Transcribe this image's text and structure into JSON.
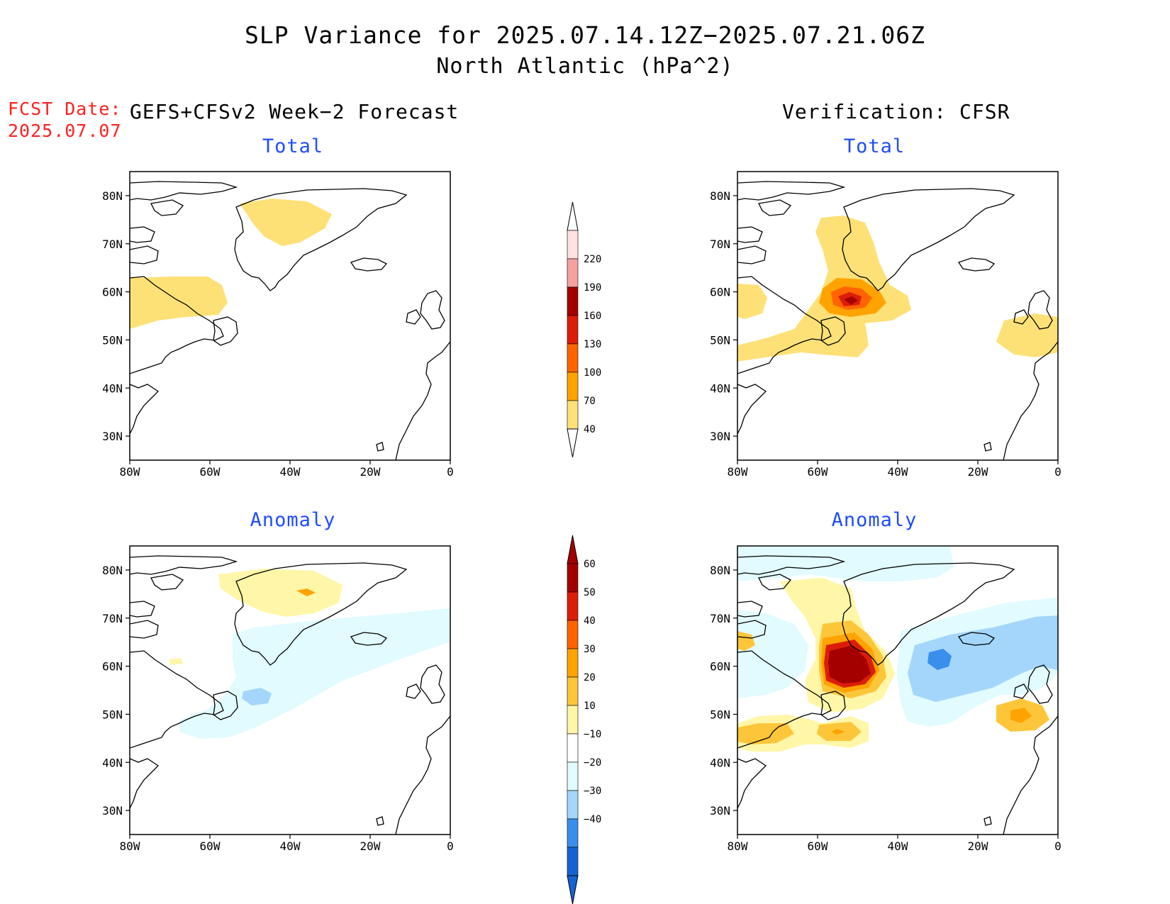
{
  "title_line1": "SLP Variance for 2025.07.14.12Z−2025.07.21.06Z",
  "title_line2": "North Atlantic (hPa^2)",
  "fcst_label": "FCST Date:",
  "fcst_date": "2025.07.07",
  "left_column_title": "GEFS+CFSv2 Week−2 Forecast",
  "right_column_title": "Verification: CFSR",
  "panels": [
    {
      "id": "fcst-total",
      "title": "Total"
    },
    {
      "id": "verif-total",
      "title": "Total"
    },
    {
      "id": "fcst-anomaly",
      "title": "Anomaly"
    },
    {
      "id": "verif-anomaly",
      "title": "Anomaly"
    }
  ],
  "map_axes": {
    "lon_ticks": [
      "80W",
      "60W",
      "40W",
      "20W",
      "0"
    ],
    "lat_ticks": [
      "80N",
      "70N",
      "60N",
      "50N",
      "40N",
      "30N"
    ],
    "lon_range": [
      -80,
      0
    ],
    "lat_range": [
      25,
      85
    ]
  },
  "colorbar_total": {
    "levels": [
      "220",
      "190",
      "160",
      "130",
      "100",
      "70",
      "40"
    ],
    "colors": [
      "#fde2de",
      "#f3a1a1",
      "#a50000",
      "#dc1d08",
      "#ff6400",
      "#ffa300",
      "#fde177"
    ]
  },
  "colorbar_anomaly": {
    "levels": [
      "60",
      "50",
      "40",
      "30",
      "20",
      "10",
      "−10",
      "−20",
      "−30",
      "−40"
    ],
    "colors_positive": [
      "#a50000",
      "#dc1d08",
      "#ff6400",
      "#ffa300",
      "#fdc63a",
      "#fff6a8"
    ],
    "colors_negative": [
      "#e1fbff",
      "#a3d6fa",
      "#3b8fec",
      "#1464d2"
    ]
  }
}
